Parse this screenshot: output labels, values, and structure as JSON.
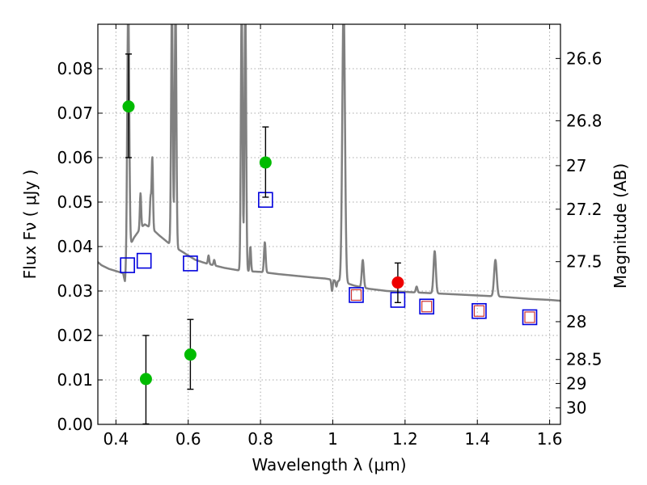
{
  "chart_data": {
    "type": "scatter",
    "xlabel": "Wavelength  λ (μm)",
    "ylabel": "Flux  Fν  ( μJy )",
    "y2label": "Magnitude (AB)",
    "xlim": [
      0.35,
      1.63
    ],
    "ylim": [
      0.0,
      0.09
    ],
    "grid": true,
    "x_ticks": [
      0.4,
      0.6,
      0.8,
      1.0,
      1.2,
      1.4,
      1.6
    ],
    "x_tick_labels": [
      "0.4",
      "0.6",
      "0.8",
      "1",
      "1.2",
      "1.4",
      "1.6"
    ],
    "y_ticks": [
      0.0,
      0.01,
      0.02,
      0.03,
      0.04,
      0.05,
      0.06,
      0.07,
      0.08
    ],
    "y_tick_labels": [
      "0.00",
      "0.01",
      "0.02",
      "0.03",
      "0.04",
      "0.05",
      "0.06",
      "0.07",
      "0.08"
    ],
    "mag_ticks": [
      {
        "flux": 0.0823,
        "label": "26.6"
      },
      {
        "flux": 0.0683,
        "label": "26.8"
      },
      {
        "flux": 0.0582,
        "label": "27"
      },
      {
        "flux": 0.0484,
        "label": "27.2"
      },
      {
        "flux": 0.0366,
        "label": "27.5"
      },
      {
        "flux": 0.0231,
        "label": "28"
      },
      {
        "flux": 0.0146,
        "label": "28.5"
      },
      {
        "flux": 0.0092,
        "label": "29"
      },
      {
        "flux": 0.0037,
        "label": "30"
      }
    ],
    "colors": {
      "model": "#808080",
      "photometry": "#00bb00",
      "photometry_highlight": "#ee0000",
      "model_band": "#0000dd",
      "model_band_inner": "#cc3333",
      "errorbar": "#000000",
      "grid": "#aaaaaa"
    },
    "series": [
      {
        "kind": "photometry",
        "points": [
          {
            "x": 0.435,
            "y": 0.0715,
            "err_low": 0.0115,
            "err_high": 0.0118
          },
          {
            "x": 0.483,
            "y": 0.0102,
            "err_low": 0.0101,
            "err_high": 0.0098
          },
          {
            "x": 0.606,
            "y": 0.0157,
            "err_low": 0.0078,
            "err_high": 0.0079
          },
          {
            "x": 0.814,
            "y": 0.0589,
            "err_low": 0.0078,
            "err_high": 0.008
          }
        ]
      },
      {
        "kind": "photometry_highlight",
        "points": [
          {
            "x": 1.18,
            "y": 0.0319,
            "err_low": 0.0045,
            "err_high": 0.0044
          }
        ]
      },
      {
        "kind": "model_band",
        "points": [
          {
            "x": 0.432,
            "y": 0.0358,
            "inner": false
          },
          {
            "x": 0.478,
            "y": 0.0368,
            "inner": false
          },
          {
            "x": 0.606,
            "y": 0.0362,
            "inner": false
          },
          {
            "x": 0.814,
            "y": 0.0505,
            "inner": false
          },
          {
            "x": 1.065,
            "y": 0.0291,
            "inner": true
          },
          {
            "x": 1.18,
            "y": 0.028,
            "inner": false
          },
          {
            "x": 1.26,
            "y": 0.0265,
            "inner": true
          },
          {
            "x": 1.405,
            "y": 0.0255,
            "inner": true
          },
          {
            "x": 1.545,
            "y": 0.0241,
            "inner": true
          }
        ]
      },
      {
        "kind": "model_spectrum",
        "continuum": [
          [
            0.35,
            0.0365
          ],
          [
            0.36,
            0.0358
          ],
          [
            0.38,
            0.035
          ],
          [
            0.4,
            0.0345
          ],
          [
            0.42,
            0.034
          ],
          [
            0.425,
            0.032
          ],
          [
            0.435,
            0.0395
          ],
          [
            0.45,
            0.042
          ],
          [
            0.47,
            0.0443
          ],
          [
            0.48,
            0.045
          ],
          [
            0.49,
            0.0445
          ],
          [
            0.5,
            0.044
          ],
          [
            0.52,
            0.0425
          ],
          [
            0.55,
            0.0405
          ],
          [
            0.58,
            0.039
          ],
          [
            0.6,
            0.038
          ],
          [
            0.62,
            0.037
          ],
          [
            0.65,
            0.0362
          ],
          [
            0.7,
            0.0352
          ],
          [
            0.75,
            0.0345
          ],
          [
            0.8,
            0.0343
          ],
          [
            0.85,
            0.0338
          ],
          [
            0.9,
            0.0334
          ],
          [
            0.95,
            0.033
          ],
          [
            0.98,
            0.0328
          ],
          [
            1.0,
            0.0325
          ],
          [
            1.03,
            0.032
          ],
          [
            1.06,
            0.0312
          ],
          [
            1.1,
            0.0305
          ],
          [
            1.15,
            0.03
          ],
          [
            1.2,
            0.0298
          ],
          [
            1.25,
            0.0296
          ],
          [
            1.3,
            0.0294
          ],
          [
            1.35,
            0.0292
          ],
          [
            1.4,
            0.029
          ],
          [
            1.45,
            0.0288
          ],
          [
            1.5,
            0.0285
          ],
          [
            1.55,
            0.0282
          ],
          [
            1.6,
            0.028
          ],
          [
            1.63,
            0.0278
          ]
        ],
        "lines": [
          {
            "x": 0.434,
            "peak": 0.095,
            "width": 0.006
          },
          {
            "x": 0.468,
            "peak": 0.052,
            "width": 0.004
          },
          {
            "x": 0.4959,
            "peak": 0.051,
            "width": 0.004
          },
          {
            "x": 0.5007,
            "peak": 0.06,
            "width": 0.004
          },
          {
            "x": 0.555,
            "peak": 0.095,
            "width": 0.005
          },
          {
            "x": 0.565,
            "peak": 0.095,
            "width": 0.005
          },
          {
            "x": 0.6563,
            "peak": 0.038,
            "width": 0.004
          },
          {
            "x": 0.672,
            "peak": 0.037,
            "width": 0.004
          },
          {
            "x": 0.748,
            "peak": 0.095,
            "width": 0.005
          },
          {
            "x": 0.758,
            "peak": 0.095,
            "width": 0.005
          },
          {
            "x": 0.772,
            "peak": 0.04,
            "width": 0.004
          },
          {
            "x": 0.812,
            "peak": 0.041,
            "width": 0.005
          },
          {
            "x": 1.03,
            "peak": 0.095,
            "width": 0.008
          },
          {
            "x": 1.083,
            "peak": 0.037,
            "width": 0.006
          },
          {
            "x": 1.282,
            "peak": 0.039,
            "width": 0.007
          },
          {
            "x": 1.45,
            "peak": 0.037,
            "width": 0.008
          }
        ],
        "dips": [
          {
            "x": 0.998,
            "depth": 0.03,
            "width": 0.004
          },
          {
            "x": 1.01,
            "depth": 0.031,
            "width": 0.004
          },
          {
            "x": 1.232,
            "depth": 0.031,
            "width": 0.005
          }
        ]
      }
    ]
  }
}
